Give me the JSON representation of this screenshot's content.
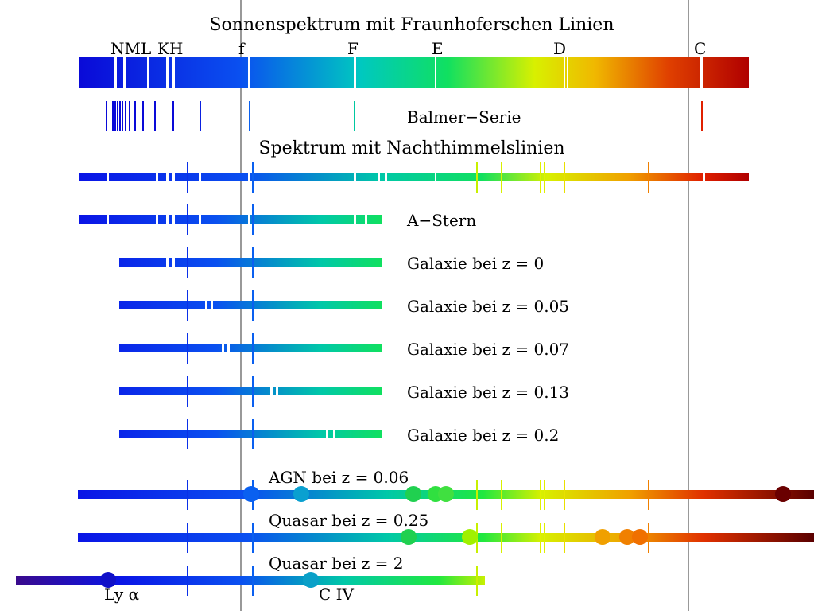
{
  "title": "Sonnenspektrum mit Fraunhoferschen Linien",
  "fraunhofer_labels": [
    "NML",
    "KH",
    "f",
    "F",
    "E",
    "D",
    "C"
  ],
  "balmer_label": "Balmer−Serie",
  "sky_title": "Spektrum mit Nachthimmelslinien",
  "a_star_label": "A−Stern",
  "galaxy_labels": [
    "Galaxie bei z = 0",
    "Galaxie bei z = 0.05",
    "Galaxie bei z = 0.07",
    "Galaxie bei z = 0.13",
    "Galaxie bei z = 0.2"
  ],
  "agn_label": "AGN bei z = 0.06",
  "quasar1_label": "Quasar bei z = 0.25",
  "quasar2_label": "Quasar bei z = 2",
  "ly_alpha_label": "Ly α",
  "civ_label": "C IV",
  "colors": {
    "violet": "#3a0a8c",
    "blue": "#0a14e6",
    "cyan": "#00c8a8",
    "green": "#10e060",
    "yellow": "#e0f000",
    "orange": "#f0a000",
    "red": "#cc1100",
    "darkred": "#5a0000",
    "guide_line": "#555555"
  }
}
